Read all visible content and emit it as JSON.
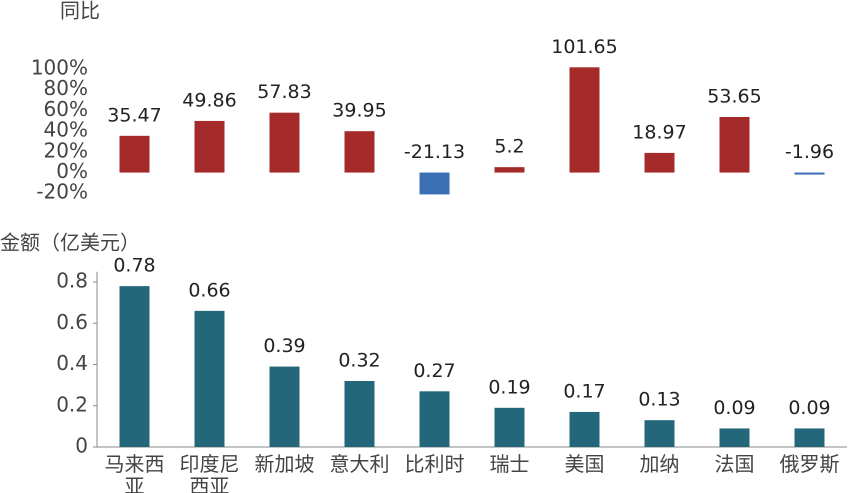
{
  "chart_data": [
    {
      "type": "bar",
      "ylabel": "同比",
      "values": [
        35.47,
        49.86,
        57.83,
        39.95,
        -21.13,
        5.2,
        101.65,
        18.97,
        53.65,
        -1.96
      ],
      "color": "#a52a2a",
      "negative_color": "#3a6fb5",
      "ylim": [
        -22,
        104
      ],
      "yticks": [
        {
          "value": -20,
          "label": "-20%"
        },
        {
          "value": 0,
          "label": "0%"
        },
        {
          "value": 20,
          "label": "20%"
        },
        {
          "value": 40,
          "label": "40%"
        },
        {
          "value": 60,
          "label": "60%"
        },
        {
          "value": 80,
          "label": "80%"
        },
        {
          "value": 100,
          "label": "100%"
        }
      ],
      "grid": false
    },
    {
      "type": "bar",
      "ylabel": "金额（亿美元）",
      "categories": [
        "马来西亚",
        "印度尼西亚",
        "新加坡",
        "意大利",
        "比利时",
        "瑞士",
        "美国",
        "加纳",
        "法国",
        "俄罗斯"
      ],
      "values": [
        0.78,
        0.66,
        0.39,
        0.32,
        0.27,
        0.19,
        0.17,
        0.13,
        0.09,
        0.09
      ],
      "color": "#25677a",
      "ylim": [
        0,
        0.85
      ],
      "yticks": [
        0,
        0.2,
        0.4,
        0.6,
        0.8
      ],
      "grid": false
    }
  ]
}
